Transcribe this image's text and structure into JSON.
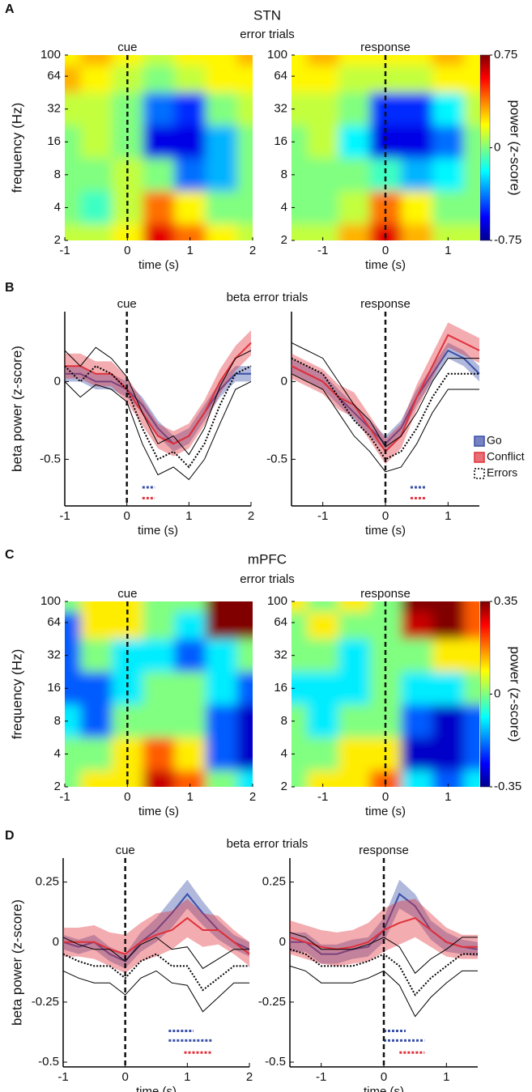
{
  "figure": {
    "panels": [
      {
        "label": "A",
        "title": "STN",
        "subtitle": "error trials"
      },
      {
        "label": "B",
        "subtitle": "beta error trials"
      },
      {
        "label": "C",
        "title": "mPFC",
        "subtitle": "error trials"
      },
      {
        "label": "D",
        "subtitle": "beta error trials"
      }
    ]
  },
  "chart_data": [
    {
      "type": "heatmap",
      "annotation": "cue",
      "xlabel": "time (s)",
      "ylabel": "frequency (Hz)",
      "event_x": 0,
      "xlim": [
        -1,
        2
      ],
      "xticks": [
        -1,
        0,
        1,
        2
      ],
      "ylim": [
        2,
        100
      ],
      "yticks": [
        100,
        64,
        32,
        16,
        8,
        4,
        2
      ],
      "ylog": true,
      "clim": [
        -0.75,
        0.75
      ],
      "x": [
        -1,
        -0.5,
        0,
        0.5,
        1,
        1.5,
        2
      ],
      "y": [
        100,
        64,
        32,
        16,
        8,
        4,
        2
      ],
      "z": [
        [
          0.2,
          0.3,
          0.2,
          0.1,
          0.2,
          0.2,
          0.3
        ],
        [
          0.3,
          0.2,
          0.1,
          0.0,
          0.1,
          0.2,
          0.2
        ],
        [
          0.1,
          0.1,
          0.0,
          -0.4,
          -0.5,
          0.0,
          0.1
        ],
        [
          0.0,
          0.1,
          0.0,
          -0.6,
          -0.6,
          -0.3,
          0.0
        ],
        [
          0.0,
          0.0,
          0.1,
          0.0,
          -0.4,
          -0.3,
          0.0
        ],
        [
          0.0,
          -0.1,
          0.1,
          0.4,
          0.2,
          0.0,
          0.0
        ],
        [
          0.1,
          0.1,
          0.2,
          0.6,
          0.4,
          0.2,
          0.1
        ]
      ]
    },
    {
      "type": "heatmap",
      "annotation": "response",
      "xlabel": "time (s)",
      "event_x": 0,
      "xlim": [
        -1.5,
        1.5
      ],
      "xticks": [
        -1,
        0,
        1
      ],
      "ylim": [
        2,
        100
      ],
      "yticks": [
        100,
        64,
        32,
        16,
        8,
        4,
        2
      ],
      "ylog": true,
      "clim": [
        -0.75,
        0.75
      ],
      "cticks": [
        0.75,
        0,
        -0.75
      ],
      "colorbar_label": "power (z-score)",
      "x": [
        -1.5,
        -1,
        -0.5,
        0,
        0.5,
        1,
        1.5
      ],
      "y": [
        100,
        64,
        32,
        16,
        8,
        4,
        2
      ],
      "z": [
        [
          0.2,
          0.3,
          0.2,
          0.2,
          0.2,
          0.3,
          0.2
        ],
        [
          0.2,
          0.2,
          0.1,
          0.1,
          0.1,
          0.2,
          0.2
        ],
        [
          0.1,
          0.1,
          0.0,
          -0.5,
          -0.5,
          -0.2,
          0.1
        ],
        [
          0.0,
          0.1,
          -0.2,
          -0.6,
          -0.6,
          -0.4,
          0.0
        ],
        [
          0.0,
          0.0,
          0.0,
          -0.1,
          -0.3,
          -0.2,
          0.0
        ],
        [
          0.0,
          0.0,
          0.1,
          0.4,
          0.2,
          0.0,
          0.0
        ],
        [
          0.1,
          0.1,
          0.3,
          0.6,
          0.3,
          0.1,
          0.1
        ]
      ]
    },
    {
      "type": "line",
      "annotation": "cue",
      "xlabel": "time (s)",
      "ylabel": "beta power (z-score)",
      "event_x": 0,
      "xlim": [
        -1,
        2
      ],
      "xticks": [
        -1,
        0,
        1,
        2
      ],
      "ylim": [
        -0.8,
        0.45
      ],
      "yticks": [
        0,
        -0.5
      ],
      "x": [
        -1,
        -0.75,
        -0.5,
        -0.25,
        0,
        0.25,
        0.5,
        0.75,
        1,
        1.25,
        1.5,
        1.75,
        2
      ],
      "series": [
        {
          "name": "Go",
          "color": "#3a4fa8",
          "style": "band",
          "values": [
            0.05,
            0.05,
            0.0,
            0.0,
            -0.05,
            -0.15,
            -0.3,
            -0.4,
            -0.35,
            -0.2,
            -0.05,
            0.05,
            0.05
          ],
          "errors": [
            0.05,
            0.05,
            0.05,
            0.05,
            0.05,
            0.05,
            0.05,
            0.05,
            0.05,
            0.05,
            0.05,
            0.05,
            0.05
          ]
        },
        {
          "name": "Conflict",
          "color": "#e0303a",
          "style": "band",
          "values": [
            0.1,
            0.1,
            0.05,
            0.05,
            -0.05,
            -0.2,
            -0.35,
            -0.4,
            -0.35,
            -0.2,
            0.0,
            0.15,
            0.25
          ],
          "errors": [
            0.08,
            0.08,
            0.08,
            0.08,
            0.08,
            0.08,
            0.08,
            0.08,
            0.08,
            0.08,
            0.08,
            0.08,
            0.08
          ]
        },
        {
          "name": "Errors",
          "color": "#000000",
          "style": "dotted",
          "values": [
            0.1,
            0.0,
            0.1,
            0.05,
            -0.05,
            -0.3,
            -0.5,
            -0.45,
            -0.55,
            -0.4,
            -0.15,
            0.05,
            0.1
          ],
          "errors": [
            0.1,
            0.1,
            0.12,
            0.1,
            0.08,
            0.1,
            0.1,
            0.1,
            0.08,
            0.1,
            0.12,
            0.1,
            0.1
          ]
        }
      ],
      "significance": [
        {
          "x": [
            0.25,
            0.45
          ],
          "y": -0.68,
          "color": "#3a4fa8"
        },
        {
          "x": [
            0.25,
            0.45
          ],
          "y": -0.75,
          "color": "#e0303a"
        }
      ]
    },
    {
      "type": "line",
      "annotation": "response",
      "xlabel": "time (s)",
      "event_x": 0,
      "legend": "right",
      "xlim": [
        -1.5,
        1.5
      ],
      "xticks": [
        -1,
        0,
        1
      ],
      "ylim": [
        -0.8,
        0.45
      ],
      "yticks": [
        0,
        -0.5
      ],
      "x": [
        -1.5,
        -1.25,
        -1,
        -0.75,
        -0.5,
        -0.25,
        0,
        0.25,
        0.5,
        0.75,
        1,
        1.25,
        1.5
      ],
      "series": [
        {
          "name": "Go",
          "color": "#3a4fa8",
          "style": "band",
          "values": [
            0.1,
            0.05,
            0.0,
            -0.1,
            -0.2,
            -0.3,
            -0.4,
            -0.3,
            -0.1,
            0.05,
            0.2,
            0.15,
            0.05
          ],
          "errors": [
            0.05,
            0.05,
            0.05,
            0.05,
            0.05,
            0.05,
            0.05,
            0.05,
            0.05,
            0.05,
            0.05,
            0.05,
            0.05
          ]
        },
        {
          "name": "Conflict",
          "color": "#e0303a",
          "style": "band",
          "values": [
            0.1,
            0.05,
            0.0,
            -0.1,
            -0.15,
            -0.3,
            -0.45,
            -0.35,
            -0.1,
            0.1,
            0.3,
            0.25,
            0.2
          ],
          "errors": [
            0.08,
            0.08,
            0.08,
            0.08,
            0.08,
            0.08,
            0.08,
            0.08,
            0.08,
            0.08,
            0.08,
            0.08,
            0.08
          ]
        },
        {
          "name": "Errors",
          "color": "#000000",
          "style": "dotted",
          "values": [
            0.15,
            0.1,
            0.05,
            -0.1,
            -0.25,
            -0.35,
            -0.5,
            -0.45,
            -0.3,
            -0.1,
            0.05,
            0.05,
            0.05
          ],
          "errors": [
            0.1,
            0.1,
            0.1,
            0.1,
            0.1,
            0.1,
            0.08,
            0.1,
            0.1,
            0.1,
            0.1,
            0.1,
            0.1
          ]
        }
      ],
      "significance": [
        {
          "x": [
            0.4,
            0.65
          ],
          "y": -0.68,
          "color": "#3a4fa8"
        },
        {
          "x": [
            0.4,
            0.65
          ],
          "y": -0.75,
          "color": "#e0303a"
        }
      ]
    },
    {
      "type": "heatmap",
      "annotation": "cue",
      "xlabel": "time (s)",
      "ylabel": "frequency (Hz)",
      "event_x": 0,
      "xlim": [
        -1,
        2
      ],
      "xticks": [
        -1,
        0,
        1,
        2
      ],
      "ylim": [
        2,
        100
      ],
      "yticks": [
        100,
        64,
        32,
        16,
        8,
        4,
        2
      ],
      "ylog": true,
      "clim": [
        -0.35,
        0.35
      ],
      "x": [
        -1,
        -0.5,
        0,
        0.5,
        1,
        1.5,
        2
      ],
      "y": [
        100,
        64,
        32,
        16,
        8,
        4,
        2
      ],
      "z": [
        [
          0.0,
          0.1,
          0.1,
          0.0,
          0.0,
          0.35,
          0.35
        ],
        [
          -0.2,
          0.1,
          0.1,
          0.0,
          -0.1,
          0.35,
          0.35
        ],
        [
          -0.2,
          0.0,
          -0.1,
          -0.1,
          -0.2,
          -0.1,
          0.0
        ],
        [
          -0.2,
          -0.2,
          -0.1,
          0.0,
          0.0,
          -0.1,
          -0.2
        ],
        [
          -0.1,
          -0.2,
          0.0,
          0.0,
          0.0,
          -0.2,
          -0.3
        ],
        [
          0.0,
          0.0,
          0.1,
          0.2,
          0.1,
          -0.2,
          -0.3
        ],
        [
          0.0,
          0.1,
          0.1,
          0.3,
          0.2,
          0.0,
          -0.1
        ]
      ]
    },
    {
      "type": "heatmap",
      "annotation": "response",
      "xlabel": "time (s)",
      "event_x": 0,
      "xlim": [
        -1.5,
        1.5
      ],
      "xticks": [
        -1,
        0,
        1
      ],
      "ylim": [
        2,
        100
      ],
      "yticks": [
        100,
        64,
        32,
        16,
        8,
        4,
        2
      ],
      "ylog": true,
      "clim": [
        -0.35,
        0.35
      ],
      "cticks": [
        0.35,
        0,
        -0.35
      ],
      "colorbar_label": "power (z-score)",
      "x": [
        -1.5,
        -1,
        -0.5,
        0,
        0.5,
        1,
        1.5
      ],
      "y": [
        100,
        64,
        32,
        16,
        8,
        4,
        2
      ],
      "z": [
        [
          0.1,
          0.0,
          0.1,
          0.0,
          0.35,
          0.35,
          0.2
        ],
        [
          0.0,
          0.1,
          0.0,
          0.0,
          0.3,
          0.35,
          0.2
        ],
        [
          0.0,
          0.0,
          -0.1,
          0.0,
          0.0,
          0.1,
          0.1
        ],
        [
          -0.1,
          -0.1,
          -0.1,
          0.0,
          -0.1,
          -0.1,
          0.0
        ],
        [
          0.0,
          -0.1,
          0.0,
          0.0,
          -0.2,
          -0.3,
          -0.2
        ],
        [
          0.0,
          0.0,
          0.1,
          0.1,
          -0.3,
          -0.3,
          -0.2
        ],
        [
          0.0,
          0.1,
          0.1,
          0.2,
          -0.1,
          -0.2,
          -0.1
        ]
      ]
    },
    {
      "type": "line",
      "annotation": "cue",
      "xlabel": "time (s)",
      "ylabel": "beta power (z-score)",
      "event_x": 0,
      "xlim": [
        -1,
        2
      ],
      "xticks": [
        -1,
        0,
        1,
        2
      ],
      "ylim": [
        -0.52,
        0.35
      ],
      "yticks": [
        0.25,
        0,
        -0.25,
        -0.5
      ],
      "x": [
        -1,
        -0.75,
        -0.5,
        -0.25,
        0,
        0.25,
        0.5,
        0.75,
        1,
        1.25,
        1.5,
        1.75,
        2
      ],
      "series": [
        {
          "name": "Go",
          "color": "#3a4fa8",
          "style": "band",
          "values": [
            0.0,
            -0.02,
            0.0,
            -0.05,
            -0.08,
            0.0,
            0.05,
            0.12,
            0.2,
            0.12,
            0.05,
            0.0,
            -0.03
          ],
          "errors": [
            0.03,
            0.03,
            0.03,
            0.03,
            0.03,
            0.04,
            0.05,
            0.06,
            0.06,
            0.05,
            0.04,
            0.03,
            0.03
          ]
        },
        {
          "name": "Conflict",
          "color": "#e0303a",
          "style": "band",
          "values": [
            0.0,
            0.0,
            0.0,
            -0.03,
            -0.05,
            0.0,
            0.03,
            0.05,
            0.1,
            0.05,
            0.05,
            0.0,
            -0.05
          ],
          "errors": [
            0.06,
            0.06,
            0.07,
            0.07,
            0.08,
            0.08,
            0.09,
            0.08,
            0.08,
            0.07,
            0.06,
            0.05,
            0.05
          ]
        },
        {
          "name": "Errors",
          "color": "#000000",
          "style": "dotted",
          "values": [
            -0.05,
            -0.08,
            -0.1,
            -0.1,
            -0.15,
            -0.08,
            -0.05,
            -0.1,
            -0.1,
            -0.2,
            -0.15,
            -0.1,
            -0.1
          ],
          "errors": [
            0.07,
            0.07,
            0.07,
            0.07,
            0.07,
            0.07,
            0.07,
            0.07,
            0.08,
            0.09,
            0.08,
            0.07,
            0.07
          ]
        }
      ],
      "significance": [
        {
          "x": [
            0.7,
            1.1
          ],
          "y": -0.37,
          "color": "#3a4fa8"
        },
        {
          "x": [
            0.7,
            1.4
          ],
          "y": -0.41,
          "color": "#3a4fa8"
        },
        {
          "x": [
            0.95,
            1.4
          ],
          "y": -0.46,
          "color": "#e0303a"
        }
      ]
    },
    {
      "type": "line",
      "annotation": "response",
      "xlabel": "time (s)",
      "event_x": 0,
      "xlim": [
        -1.5,
        1.5
      ],
      "xticks": [
        -1,
        0,
        1
      ],
      "ylim": [
        -0.52,
        0.35
      ],
      "yticks": [
        0.25,
        0,
        -0.25,
        -0.5
      ],
      "x": [
        -1.5,
        -1.25,
        -1,
        -0.75,
        -0.5,
        -0.25,
        0,
        0.25,
        0.5,
        0.75,
        1,
        1.25,
        1.5
      ],
      "series": [
        {
          "name": "Go",
          "color": "#3a4fa8",
          "style": "band",
          "values": [
            0.0,
            0.0,
            -0.05,
            -0.05,
            -0.03,
            -0.02,
            0.05,
            0.2,
            0.15,
            0.05,
            0.0,
            -0.02,
            -0.03
          ],
          "errors": [
            0.04,
            0.04,
            0.04,
            0.04,
            0.04,
            0.04,
            0.05,
            0.06,
            0.05,
            0.04,
            0.04,
            0.03,
            0.03
          ]
        },
        {
          "name": "Conflict",
          "color": "#e0303a",
          "style": "band",
          "values": [
            0.02,
            0.0,
            -0.02,
            -0.03,
            -0.02,
            0.0,
            0.05,
            0.08,
            0.1,
            0.05,
            0.0,
            -0.02,
            -0.02
          ],
          "errors": [
            0.07,
            0.07,
            0.07,
            0.07,
            0.07,
            0.08,
            0.09,
            0.09,
            0.08,
            0.07,
            0.06,
            0.05,
            0.05
          ]
        },
        {
          "name": "Errors",
          "color": "#000000",
          "style": "dotted",
          "values": [
            -0.03,
            -0.05,
            -0.1,
            -0.1,
            -0.1,
            -0.08,
            -0.05,
            -0.1,
            -0.22,
            -0.15,
            -0.1,
            -0.05,
            -0.05
          ],
          "errors": [
            0.07,
            0.07,
            0.07,
            0.07,
            0.07,
            0.07,
            0.07,
            0.08,
            0.09,
            0.08,
            0.07,
            0.07,
            0.07
          ]
        }
      ],
      "significance": [
        {
          "x": [
            0.0,
            0.35
          ],
          "y": -0.37,
          "color": "#3a4fa8"
        },
        {
          "x": [
            0.0,
            0.65
          ],
          "y": -0.41,
          "color": "#3a4fa8"
        },
        {
          "x": [
            0.25,
            0.65
          ],
          "y": -0.46,
          "color": "#e0303a"
        }
      ]
    }
  ]
}
